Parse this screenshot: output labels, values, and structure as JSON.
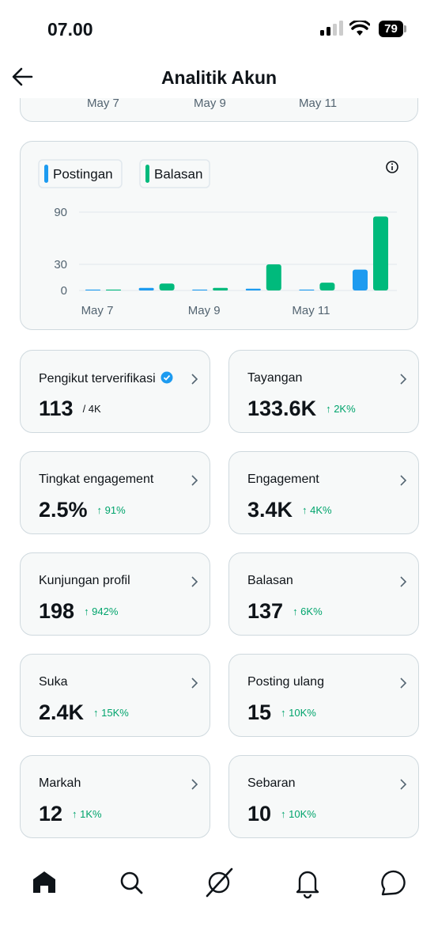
{
  "status_bar": {
    "time": "07.00",
    "battery": "79"
  },
  "header": {
    "title": "Analitik Akun"
  },
  "previous_card": {
    "labels": [
      "May 7",
      "May 9",
      "May 11"
    ]
  },
  "chart_data": {
    "type": "bar",
    "categories": [
      "May 7",
      null,
      "May 9",
      null,
      "May 11",
      null
    ],
    "series": [
      {
        "name": "Postingan",
        "color": "#1d9bf0",
        "values": [
          1,
          3,
          1,
          2,
          1,
          24
        ]
      },
      {
        "name": "Balasan",
        "color": "#00ba7c",
        "values": [
          1,
          8,
          3,
          30,
          9,
          85
        ]
      }
    ],
    "ylim": [
      0,
      90
    ],
    "yticks": [
      0,
      30,
      90
    ],
    "grid": true
  },
  "cards": [
    {
      "label": "Pengikut terverifikasi",
      "value": "113",
      "total": "/ 4K",
      "verified": true
    },
    {
      "label": "Tayangan",
      "value": "133.6K",
      "change": "↑ 2K%"
    },
    {
      "label": "Tingkat engagement",
      "value": "2.5%",
      "change": "↑ 91%"
    },
    {
      "label": "Engagement",
      "value": "3.4K",
      "change": "↑ 4K%"
    },
    {
      "label": "Kunjungan profil",
      "value": "198",
      "change": "↑ 942%"
    },
    {
      "label": "Balasan",
      "value": "137",
      "change": "↑ 6K%"
    },
    {
      "label": "Suka",
      "value": "2.4K",
      "change": "↑ 15K%"
    },
    {
      "label": "Posting ulang",
      "value": "15",
      "change": "↑ 10K%"
    },
    {
      "label": "Markah",
      "value": "12",
      "change": "↑ 1K%"
    },
    {
      "label": "Sebaran",
      "value": "10",
      "change": "↑ 10K%"
    }
  ]
}
